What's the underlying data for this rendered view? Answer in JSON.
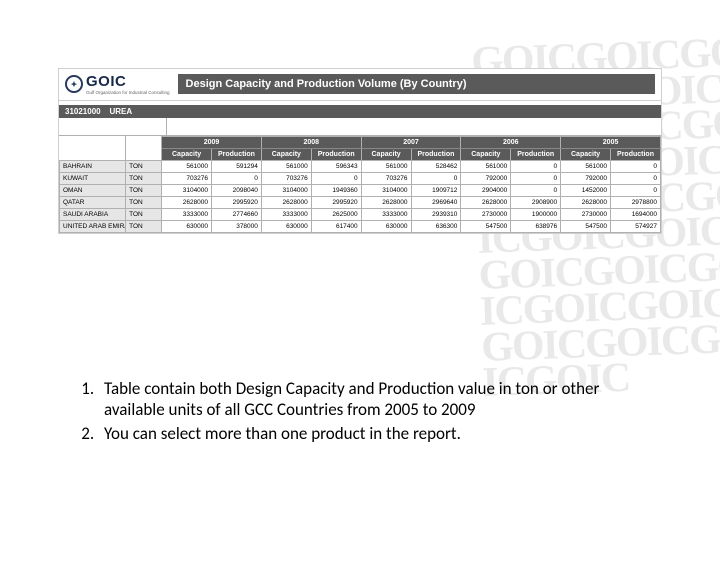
{
  "watermark_text": "GOICGOICGOICGOICGOICGOICGOICGOICGOICGOICGOICGOICGOICGOICGOICGOICGOICGOICGOICGOICGOICGOICGOICGOIC",
  "logo": {
    "brand": "GOIC",
    "subtitle": "Gulf Organization for Industrial Consulting"
  },
  "report": {
    "title": "Design Capacity and Production Volume (By Country)",
    "category_code": "31021000",
    "category_name": "UREA",
    "years": [
      "2009",
      "2008",
      "2007",
      "2006",
      "2005"
    ],
    "sub_headers": [
      "Capacity",
      "Production"
    ],
    "unit": "TON",
    "rows": [
      {
        "country": "BAHRAIN",
        "vals": [
          "561000",
          "591294",
          "561000",
          "596343",
          "561000",
          "528462",
          "561000",
          "0",
          "561000",
          "0"
        ]
      },
      {
        "country": "KUWAIT",
        "vals": [
          "703276",
          "0",
          "703276",
          "0",
          "703276",
          "0",
          "792000",
          "0",
          "792000",
          "0"
        ]
      },
      {
        "country": "OMAN",
        "vals": [
          "3104000",
          "2098040",
          "3104000",
          "1949360",
          "3104000",
          "1909712",
          "2904000",
          "0",
          "1452000",
          "0"
        ]
      },
      {
        "country": "QATAR",
        "vals": [
          "2628000",
          "2995920",
          "2628000",
          "2995920",
          "2628000",
          "2969640",
          "2628000",
          "2908900",
          "2628000",
          "2978800"
        ]
      },
      {
        "country": "SAUDI ARABIA",
        "vals": [
          "3333000",
          "2774660",
          "3333000",
          "2625000",
          "3333000",
          "2939310",
          "2730000",
          "1900000",
          "2730000",
          "1694000"
        ]
      },
      {
        "country": "UNITED ARAB EMIRATES",
        "vals": [
          "630000",
          "378000",
          "630000",
          "617400",
          "630000",
          "636300",
          "547500",
          "638976",
          "547500",
          "574927"
        ]
      }
    ]
  },
  "notes": [
    "Table contain both Design Capacity and Production value in ton or other available units of all GCC Countries from 2005 to 2009",
    "You can select more than one product in the report."
  ]
}
